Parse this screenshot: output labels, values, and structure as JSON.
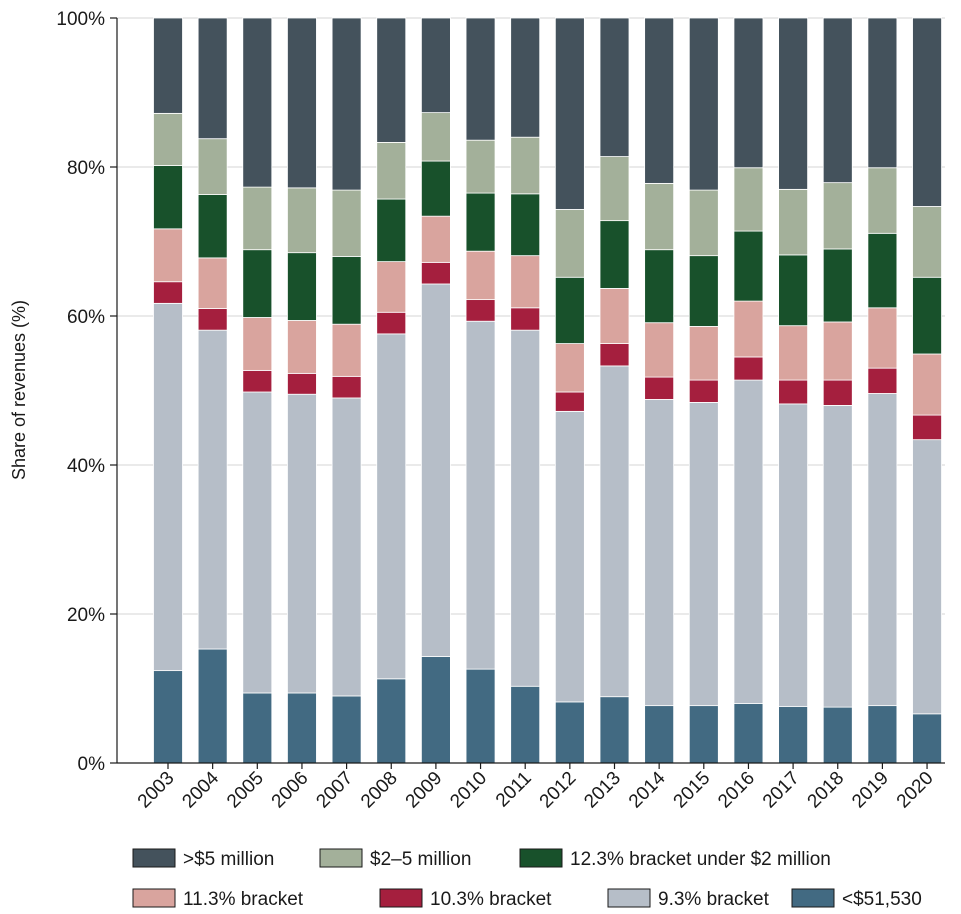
{
  "chart_data": {
    "type": "bar",
    "stacked": true,
    "title": "",
    "xlabel": "",
    "ylabel": "Share of revenues (%)",
    "ylim": [
      0,
      100
    ],
    "y_ticks": [
      "0%",
      "20%",
      "40%",
      "60%",
      "80%",
      "100%"
    ],
    "grid": "horizontal",
    "legend_position": "bottom",
    "categories": [
      "2003",
      "2004",
      "2005",
      "2006",
      "2007",
      "2008",
      "2009",
      "2010",
      "2011",
      "2012",
      "2013",
      "2014",
      "2015",
      "2016",
      "2017",
      "2018",
      "2019",
      "2020"
    ],
    "series": [
      {
        "name": "<$51,530",
        "color": "#426a82",
        "values": [
          12.4,
          15.3,
          9.4,
          9.4,
          9.0,
          11.3,
          14.3,
          12.6,
          10.3,
          8.2,
          8.9,
          7.7,
          7.7,
          8.0,
          7.6,
          7.5,
          7.7,
          6.6
        ]
      },
      {
        "name": "9.3% bracket",
        "color": "#b6bec8",
        "values": [
          49.3,
          42.8,
          40.4,
          40.1,
          40.0,
          46.3,
          50.0,
          46.7,
          47.8,
          39.0,
          44.4,
          41.1,
          40.7,
          43.4,
          40.6,
          40.5,
          41.9,
          36.8
        ]
      },
      {
        "name": "10.3% bracket",
        "color": "#a51f3e",
        "values": [
          2.9,
          2.9,
          2.9,
          2.8,
          2.9,
          2.9,
          2.9,
          2.9,
          3.0,
          2.6,
          3.0,
          3.0,
          3.0,
          3.1,
          3.2,
          3.4,
          3.4,
          3.3
        ]
      },
      {
        "name": "11.3% bracket",
        "color": "#d9a49e",
        "values": [
          7.1,
          6.8,
          7.1,
          7.1,
          7.0,
          6.8,
          6.2,
          6.5,
          7.0,
          6.5,
          7.4,
          7.3,
          7.2,
          7.5,
          7.3,
          7.8,
          8.1,
          8.2
        ]
      },
      {
        "name": "12.3% bracket under $2 million",
        "color": "#18512b",
        "values": [
          8.5,
          8.5,
          9.1,
          9.1,
          9.1,
          8.4,
          7.4,
          7.8,
          8.3,
          8.9,
          9.1,
          9.8,
          9.5,
          9.4,
          9.5,
          9.8,
          10.0,
          10.3
        ]
      },
      {
        "name": "$2–5 million",
        "color": "#a3b09a",
        "values": [
          7.0,
          7.5,
          8.4,
          8.7,
          8.9,
          7.6,
          6.5,
          7.1,
          7.6,
          9.1,
          8.6,
          8.9,
          8.8,
          8.5,
          8.8,
          8.9,
          8.8,
          9.5
        ]
      },
      {
        "name": ">$5 million",
        "color": "#44525c",
        "values": [
          12.8,
          16.2,
          22.7,
          22.8,
          23.1,
          16.7,
          12.7,
          16.4,
          16.0,
          25.7,
          18.6,
          22.2,
          23.1,
          20.1,
          23.0,
          22.1,
          20.1,
          25.3
        ]
      }
    ],
    "legend_rows": [
      [
        ">$5 million",
        "$2–5 million",
        "12.3% bracket under $2 million"
      ],
      [
        "11.3% bracket",
        "10.3% bracket",
        "9.3% bracket",
        "<$51,530"
      ]
    ]
  }
}
